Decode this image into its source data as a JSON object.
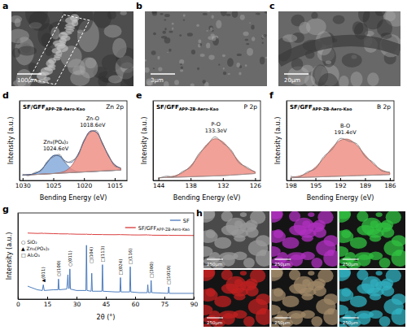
{
  "chart_data": [
    {
      "label": "d",
      "type": "line",
      "title": [
        "SF/GFF",
        "APP-ZB-Aero-Kao"
      ],
      "subtitle": "Zn 2p",
      "x_label": "Bending Energy (eV)",
      "y_label": "Intensity (a.u.)",
      "x": [
        1030,
        1029,
        1028,
        1027,
        1026,
        1025,
        1024,
        1023,
        1022,
        1021,
        1020,
        1019,
        1018,
        1017,
        1016,
        1015,
        1014
      ],
      "xlim": [
        1030.5,
        1013
      ],
      "xticks": [
        1030,
        1025,
        1020,
        1015
      ],
      "ylim": [
        0,
        150
      ],
      "tick_labels": "x",
      "series": [
        {
          "color": "#9a9a9a",
          "values": [
            10,
            10.6,
            11.2,
            11.8,
            12.4,
            13,
            13.6,
            14.2,
            14.8,
            15.4,
            16,
            16.6,
            17.2,
            17.8,
            18.4,
            19,
            19.6
          ]
        },
        {
          "type": "area",
          "color": "#7fa6da",
          "values": [
            10,
            10.9,
            13,
            19.8,
            33.6,
            46.6,
            45.5,
            32.4,
            21.1,
            16.7,
            16.2,
            16.6,
            17.2,
            17.8,
            18.4,
            19,
            19.6
          ]
        },
        {
          "type": "area",
          "color": "#ef8a7e",
          "values": [
            10,
            10.6,
            11.2,
            11.8,
            12.4,
            13.1,
            14.5,
            18.1,
            27.9,
            47.4,
            73.6,
            92.7,
            91,
            70.4,
            45.9,
            29.5,
            22.6
          ]
        },
        {
          "color": "#2f4f8f",
          "values": [
            10,
            10.9,
            13,
            19.8,
            33.6,
            46.7,
            46.4,
            36.3,
            34.2,
            48.7,
            73.8,
            92.7,
            91,
            70.4,
            45.9,
            29.5,
            22.6
          ]
        },
        {
          "color": "#777777",
          "values": [
            12,
            9,
            15,
            18,
            36,
            44,
            49,
            34,
            37,
            46,
            76,
            90,
            94,
            68,
            48,
            27,
            24
          ]
        }
      ],
      "annotations": [
        {
          "text": [
            "Zn₃(PO₄)₂",
            "1024.6eV"
          ],
          "x": 1024.6
        },
        {
          "text": [
            "Zn-O",
            "1018.6eV"
          ],
          "x": 1018.6
        }
      ]
    },
    {
      "label": "e",
      "type": "line",
      "title": [
        "SF/GFF",
        "APP-ZB-Aero-Kao"
      ],
      "subtitle": "P 2p",
      "x_label": "Bending Energy (eV)",
      "y_label": "Intensity (a.u.)",
      "x": [
        144,
        142.5,
        141,
        139.5,
        138,
        136.5,
        135,
        133.5,
        132,
        130.5,
        129,
        127.5,
        126
      ],
      "xlim": [
        145,
        125
      ],
      "xticks": [
        144,
        138,
        132,
        126
      ],
      "ylim": [
        0,
        150
      ],
      "tick_labels": "x",
      "series": [
        {
          "color": "#9a9a9a",
          "values": [
            5,
            5.5,
            6,
            6.5,
            7,
            7.5,
            8,
            8.5,
            9,
            10,
            11,
            12,
            13
          ]
        },
        {
          "type": "area",
          "color": "#ef8a7e",
          "values": [
            5.1,
            6.1,
            8.6,
            14.8,
            27.5,
            47.1,
            67.6,
            78.5,
            72.7,
            55.3,
            36,
            22.8,
            16.6
          ]
        },
        {
          "color": "#777777",
          "values": [
            4,
            8,
            7,
            17,
            25,
            50,
            65,
            82,
            70,
            58,
            33,
            25,
            15
          ]
        }
      ],
      "annotations": [
        {
          "text": [
            "P-O",
            "133.3eV"
          ],
          "x": 133.3
        }
      ]
    },
    {
      "label": "f",
      "type": "line",
      "title": [
        "SF/GFF",
        "APP-ZB-Aero-Kao"
      ],
      "subtitle": "B 2p",
      "x_label": "Bending Energy (eV)",
      "y_label": "Intensity (a.u.)",
      "x": [
        198,
        197,
        196,
        195,
        194,
        193,
        192,
        191,
        190,
        189,
        188,
        187,
        186
      ],
      "xlim": [
        198.5,
        185.5
      ],
      "xticks": [
        198,
        195,
        192,
        189,
        186
      ],
      "ylim": [
        0,
        150
      ],
      "tick_labels": "x",
      "series": [
        {
          "color": "#9a9a9a",
          "values": [
            5,
            5.5,
            6,
            6.5,
            7,
            7.5,
            8,
            8.5,
            9,
            9.5,
            10,
            10.5,
            11
          ]
        },
        {
          "type": "area",
          "color": "#ef8a7e",
          "values": [
            5.8,
            8.2,
            13.8,
            24.8,
            41.9,
            61.2,
            75.5,
            77.4,
            66.2,
            48.1,
            31.2,
            20,
            14.4
          ]
        },
        {
          "color": "#777777",
          "values": [
            8,
            6,
            16,
            22,
            45,
            58,
            79,
            74,
            69,
            45,
            34,
            18,
            16
          ]
        }
      ],
      "annotations": [
        {
          "text": [
            "B-O",
            "191.4eV"
          ],
          "x": 191.4
        }
      ]
    },
    {
      "label": "g",
      "type": "line",
      "x_label": "2θ (°)",
      "y_label": "Intensity (a.u.)",
      "x": [
        5,
        10,
        12.5,
        13,
        13.5,
        18,
        20.5,
        20.8,
        21.1,
        25,
        25.6,
        25.9,
        26.3,
        26.6,
        26.9,
        30,
        34.8,
        35.1,
        35.4,
        37.5,
        37.8,
        38.1,
        43,
        43.3,
        43.6,
        50,
        52.2,
        52.5,
        52.8,
        57.2,
        57.5,
        57.8,
        62,
        66.2,
        66.5,
        66.8,
        67.9,
        68.2,
        68.5,
        76.9,
        77.2,
        77.5,
        85,
        90
      ],
      "xlim": [
        0,
        90
      ],
      "xticks": [
        0,
        15,
        30,
        45,
        60,
        75,
        90
      ],
      "ylim": [
        0,
        120
      ],
      "tick_labels": "x",
      "legend": "upper right",
      "series": [
        {
          "name": "SF",
          "color": "#3b6fb6",
          "values": [
            18,
            13,
            12,
            20,
            12,
            13,
            13,
            28,
            13,
            14,
            34,
            15,
            15,
            42,
            14,
            12,
            12,
            75,
            12,
            11,
            36,
            11,
            11,
            48,
            11,
            10,
            10,
            30,
            10,
            10,
            45,
            10,
            9,
            9,
            20,
            9,
            9,
            26,
            9,
            8,
            17,
            8,
            8,
            8
          ]
        },
        {
          "name": [
            "SF/GFF",
            "APP-ZB-Aero-Kao"
          ],
          "color": "#d62728",
          "values": [
            92,
            91.5,
            91.8,
            91.4,
            91.6,
            91.2,
            91,
            91.3,
            90.9,
            90.8,
            91,
            90.6,
            90.8,
            90.5,
            90.7,
            90.4,
            90.3,
            90.6,
            90.2,
            90.1,
            90.4,
            90,
            89.9,
            90.2,
            89.8,
            89.7,
            89.9,
            89.6,
            89.8,
            89.5,
            89.7,
            89.4,
            89.3,
            89.5,
            89.2,
            89.4,
            89.1,
            89.3,
            89,
            88.9,
            89.1,
            88.8,
            88.7,
            88.6
          ]
        }
      ],
      "symbol_key": [
        "○ SiO₂",
        "▲ Zn₃(PO₄)₂",
        "□ Al₂O₃"
      ],
      "annotations": [
        {
          "text": "▲(011)",
          "x": 13
        },
        {
          "text": "○(100)",
          "x": 20.8
        },
        {
          "text": "○(011)",
          "x": 26.6
        },
        {
          "text": "□(104)",
          "x": 35.1
        },
        {
          "text": "□(113)",
          "x": 43.3
        },
        {
          "text": "□(024)",
          "x": 52.5
        },
        {
          "text": "□(116)",
          "x": 57.5
        },
        {
          "text": "□(300)",
          "x": 68.2
        },
        {
          "text": "□(1010)",
          "x": 77.2
        }
      ]
    }
  ],
  "images": [
    {
      "label": "a",
      "scale_bar": "100μm"
    },
    {
      "label": "b",
      "scale_bar": "3μm"
    },
    {
      "label": "c",
      "scale_bar": "20μm"
    }
  ],
  "maps": {
    "label": "h",
    "panels": [
      {
        "color": "#9a9a9a",
        "scale_bar": "250μm"
      },
      {
        "color": "#b030c0",
        "scale_bar": "250μm"
      },
      {
        "color": "#30c040",
        "scale_bar": "250μm"
      },
      {
        "color": "#c02020",
        "scale_bar": "250μm"
      },
      {
        "color": "#a08868",
        "scale_bar": "250μm"
      },
      {
        "color": "#30b0c0",
        "scale_bar": "250μm"
      }
    ]
  }
}
